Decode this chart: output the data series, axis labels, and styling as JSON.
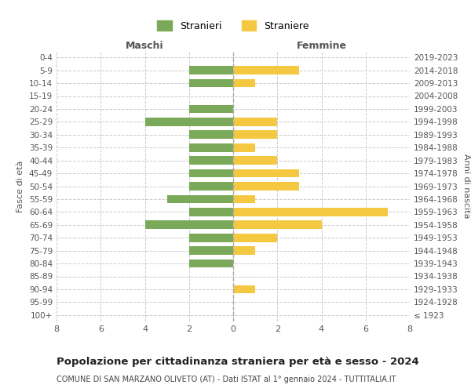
{
  "age_groups": [
    "100+",
    "95-99",
    "90-94",
    "85-89",
    "80-84",
    "75-79",
    "70-74",
    "65-69",
    "60-64",
    "55-59",
    "50-54",
    "45-49",
    "40-44",
    "35-39",
    "30-34",
    "25-29",
    "20-24",
    "15-19",
    "10-14",
    "5-9",
    "0-4"
  ],
  "birth_years": [
    "≤ 1923",
    "1924-1928",
    "1929-1933",
    "1934-1938",
    "1939-1943",
    "1944-1948",
    "1949-1953",
    "1954-1958",
    "1959-1963",
    "1964-1968",
    "1969-1973",
    "1974-1978",
    "1979-1983",
    "1984-1988",
    "1989-1993",
    "1994-1998",
    "1999-2003",
    "2004-2008",
    "2009-2013",
    "2014-2018",
    "2019-2023"
  ],
  "males": [
    0,
    0,
    0,
    0,
    2,
    2,
    2,
    4,
    2,
    3,
    2,
    2,
    2,
    2,
    2,
    4,
    2,
    0,
    2,
    2,
    0
  ],
  "females": [
    0,
    0,
    1,
    0,
    0,
    1,
    2,
    4,
    7,
    1,
    3,
    3,
    2,
    1,
    2,
    2,
    0,
    0,
    1,
    3,
    0
  ],
  "male_color": "#7aaa59",
  "female_color": "#f5c842",
  "title": "Popolazione per cittadinanza straniera per età e sesso - 2024",
  "subtitle": "COMUNE DI SAN MARZANO OLIVETO (AT) - Dati ISTAT al 1° gennaio 2024 - TUTTITALIA.IT",
  "ylabel_left": "Fasce di età",
  "ylabel_right": "Anni di nascita",
  "xlabel_left": "Maschi",
  "xlabel_right": "Femmine",
  "legend_male": "Stranieri",
  "legend_female": "Straniere",
  "xlim": 8,
  "background_color": "#ffffff",
  "grid_color": "#cccccc",
  "dashed_line_color": "#aaaaaa"
}
